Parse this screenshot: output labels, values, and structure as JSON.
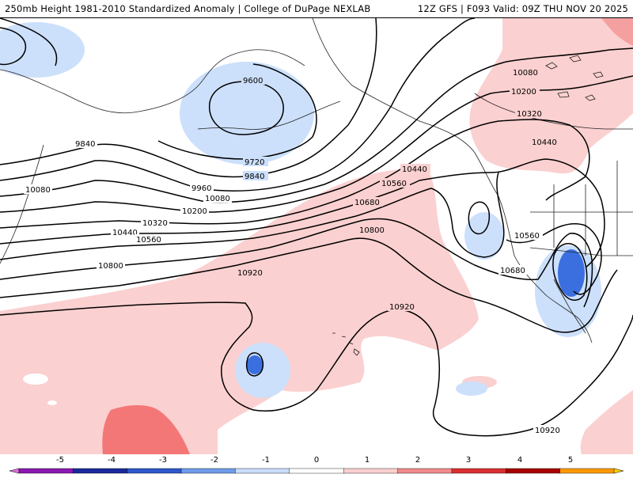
{
  "header": {
    "title_left": "250mb Height 1981-2010 Standardized Anomaly | College of DuPage NEXLAB",
    "title_right": "12Z GFS | F093 Valid: 09Z THU NOV 20 2025"
  },
  "contour_labels": [
    "9600",
    "9720",
    "9840",
    "9960",
    "10080",
    "10200",
    "10320",
    "10440",
    "10560",
    "10680",
    "10800",
    "10920"
  ],
  "colorbar": {
    "ticks": [
      "-5",
      "-4",
      "-3",
      "-2",
      "-1",
      "0",
      "1",
      "2",
      "3",
      "4",
      "5"
    ],
    "colors": [
      "#e070e0",
      "#8a1ab0",
      "#1a2a9a",
      "#2e57c8",
      "#6f9be8",
      "#c9ddfa",
      "#ffffff",
      "#fbd0d0",
      "#f08a8a",
      "#d92f2f",
      "#a80000",
      "#ff9900",
      "#ffd000"
    ]
  },
  "colors": {
    "positive_light": "#fbd0d0",
    "positive_medium": "#f47777",
    "negative_light": "#cce0fb",
    "negative_medium": "#3b6fe0",
    "contour": "#000000",
    "coastline": "#222222"
  }
}
